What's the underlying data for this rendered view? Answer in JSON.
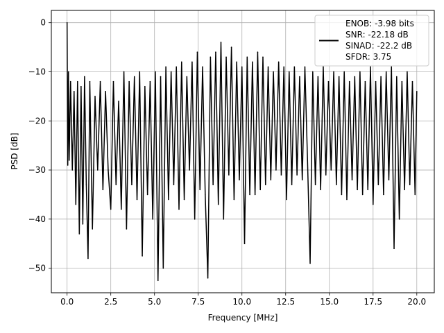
{
  "chart_data": {
    "type": "line",
    "title": "",
    "xlabel": "Frequency [MHz]",
    "ylabel": "PSD [dB]",
    "xlim": [
      -0.9,
      21.0
    ],
    "ylim": [
      -55,
      2.5
    ],
    "grid": true,
    "x_ticks": [
      0.0,
      2.5,
      5.0,
      7.5,
      10.0,
      12.5,
      15.0,
      17.5,
      20.0
    ],
    "x_tick_labels": [
      "0.0",
      "2.5",
      "5.0",
      "7.5",
      "10.0",
      "12.5",
      "15.0",
      "17.5",
      "20.0"
    ],
    "y_ticks": [
      0,
      -10,
      -20,
      -30,
      -40,
      -50
    ],
    "y_tick_labels": [
      "0",
      "−10",
      "−20",
      "−30",
      "−40",
      "−50"
    ],
    "legend": {
      "placement": "top-right",
      "label": "ENOB: -3.98 bits\nSNR: -22.18 dB\nSINAD: -22.2 dB\nSFDR: 3.75"
    },
    "series": [
      {
        "color": "#000000",
        "x": [
          0.0,
          0.04,
          0.08,
          0.12,
          0.2,
          0.3,
          0.4,
          0.5,
          0.6,
          0.7,
          0.8,
          0.9,
          1.0,
          1.1,
          1.2,
          1.3,
          1.45,
          1.6,
          1.75,
          1.9,
          2.05,
          2.2,
          2.35,
          2.5,
          2.65,
          2.8,
          2.95,
          3.1,
          3.25,
          3.4,
          3.55,
          3.7,
          3.85,
          4.0,
          4.15,
          4.3,
          4.45,
          4.6,
          4.75,
          4.9,
          5.05,
          5.2,
          5.35,
          5.5,
          5.65,
          5.8,
          5.95,
          6.1,
          6.25,
          6.4,
          6.55,
          6.7,
          6.85,
          7.0,
          7.15,
          7.3,
          7.45,
          7.6,
          7.75,
          7.9,
          8.05,
          8.2,
          8.35,
          8.5,
          8.65,
          8.8,
          8.95,
          9.1,
          9.25,
          9.4,
          9.55,
          9.7,
          9.85,
          10.0,
          10.15,
          10.3,
          10.45,
          10.6,
          10.75,
          10.9,
          11.05,
          11.2,
          11.35,
          11.5,
          11.65,
          11.8,
          11.95,
          12.1,
          12.25,
          12.4,
          12.55,
          12.7,
          12.85,
          13.0,
          13.15,
          13.3,
          13.45,
          13.6,
          13.75,
          13.9,
          14.05,
          14.2,
          14.35,
          14.5,
          14.65,
          14.8,
          14.95,
          15.1,
          15.25,
          15.4,
          15.55,
          15.7,
          15.85,
          16.0,
          16.15,
          16.3,
          16.45,
          16.6,
          16.75,
          16.9,
          17.05,
          17.2,
          17.35,
          17.5,
          17.65,
          17.8,
          17.95,
          18.1,
          18.25,
          18.4,
          18.55,
          18.7,
          18.85,
          19.0,
          19.15,
          19.3,
          19.45,
          19.6,
          19.75,
          19.9,
          20.0
        ],
        "values": [
          0.0,
          -29.0,
          -10.0,
          -28.0,
          -12.0,
          -30.0,
          -14.0,
          -37.0,
          -12.0,
          -43.0,
          -13.0,
          -41.0,
          -11.0,
          -33.0,
          -48.0,
          -12.0,
          -42.0,
          -15.0,
          -30.0,
          -12.0,
          -34.0,
          -14.0,
          -30.0,
          -38.0,
          -12.0,
          -33.0,
          -16.0,
          -38.0,
          -10.0,
          -42.0,
          -12.0,
          -33.0,
          -11.0,
          -36.0,
          -10.0,
          -47.5,
          -13.0,
          -35.0,
          -12.0,
          -40.0,
          -10.0,
          -52.5,
          -11.0,
          -50.0,
          -9.0,
          -36.0,
          -10.0,
          -33.0,
          -9.0,
          -38.0,
          -8.0,
          -36.0,
          -11.0,
          -30.0,
          -8.0,
          -40.0,
          -6.0,
          -34.0,
          -9.0,
          -35.0,
          -52.0,
          -7.0,
          -33.0,
          -6.0,
          -37.0,
          -4.0,
          -40.0,
          -7.0,
          -31.0,
          -5.0,
          -36.0,
          -8.0,
          -32.0,
          -9.0,
          -45.0,
          -7.0,
          -35.0,
          -8.0,
          -35.0,
          -6.0,
          -34.0,
          -7.0,
          -33.0,
          -9.0,
          -32.0,
          -10.0,
          -30.0,
          -8.0,
          -31.0,
          -9.0,
          -36.0,
          -10.0,
          -33.0,
          -9.0,
          -31.0,
          -11.0,
          -32.0,
          -9.0,
          -28.0,
          -49.0,
          -10.0,
          -33.0,
          -11.0,
          -34.0,
          -9.0,
          -31.0,
          -12.0,
          -30.0,
          -10.0,
          -33.0,
          -11.0,
          -35.0,
          -10.0,
          -36.0,
          -12.0,
          -32.0,
          -11.0,
          -34.0,
          -10.0,
          -35.0,
          -12.0,
          -34.0,
          -9.0,
          -37.0,
          -12.0,
          -33.0,
          -11.0,
          -35.0,
          -10.0,
          -32.0,
          -9.0,
          -46.0,
          -11.0,
          -40.0,
          -12.0,
          -34.0,
          -10.0,
          -33.0,
          -12.0,
          -35.0,
          -14.0
        ]
      }
    ]
  }
}
